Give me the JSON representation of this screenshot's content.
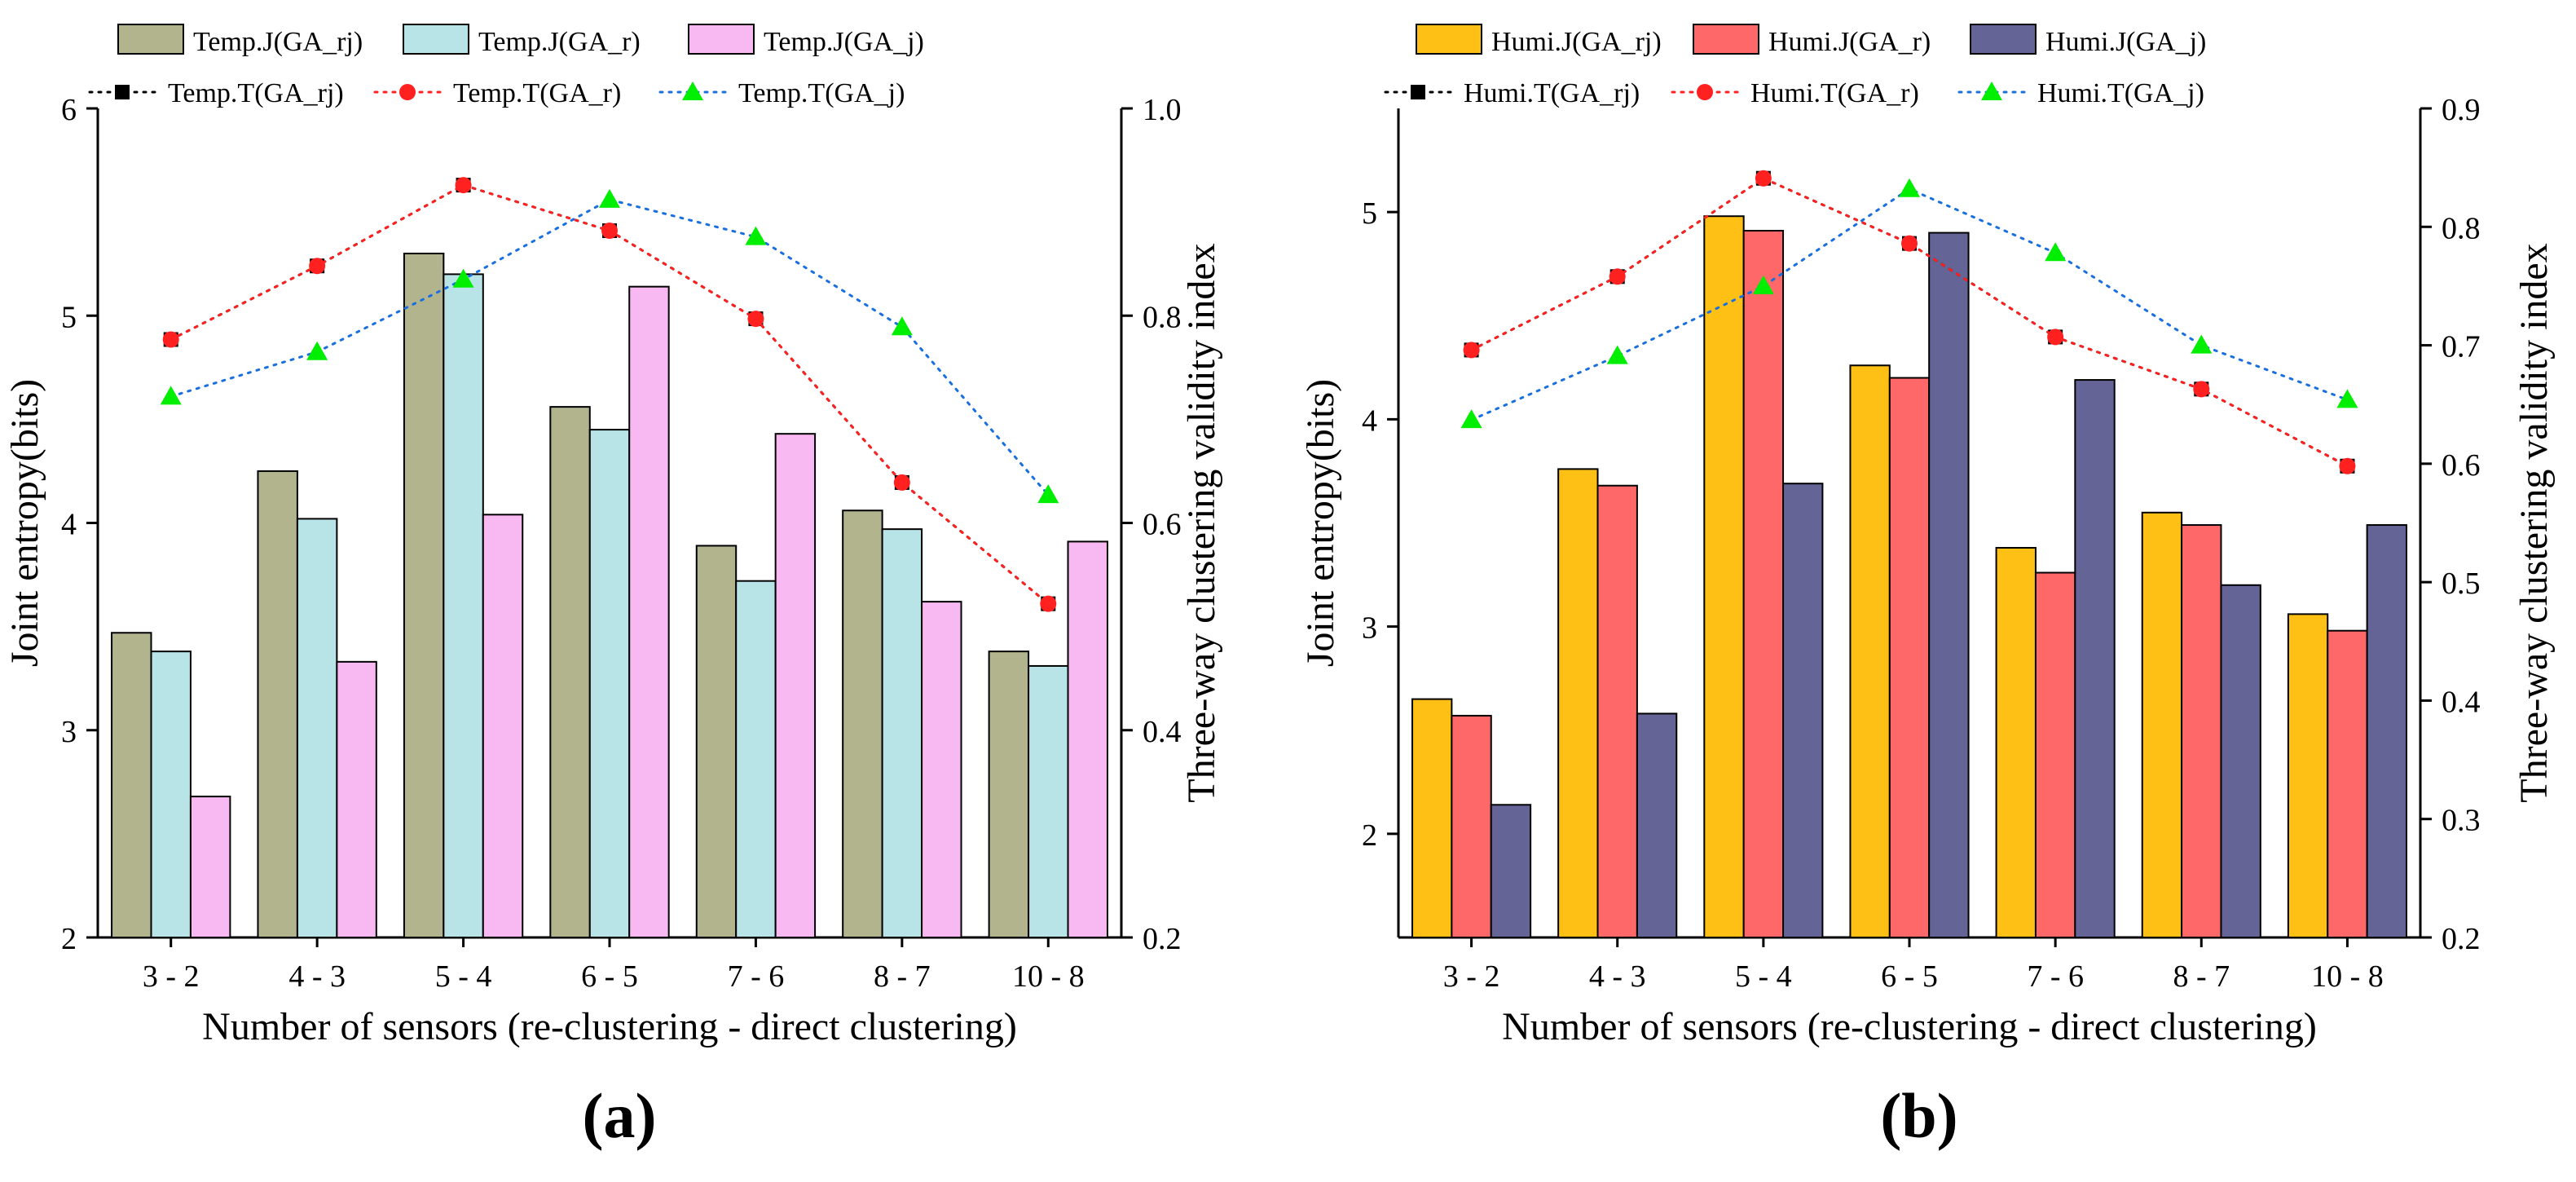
{
  "chart_data": [
    {
      "type": "bar",
      "panel_label": "(a)",
      "categories": [
        "3 - 2",
        "4 - 3",
        "5 - 4",
        "6 - 5",
        "7 - 6",
        "8 - 7",
        "10 - 8"
      ],
      "xlabel": "Number of sensors (re-clustering - direct clustering)",
      "ylabel": "Joint entropy(bits)",
      "y2label": "Three-way clustering validity index",
      "ylim": [
        2,
        6
      ],
      "yticks": [
        2,
        3,
        4,
        5,
        6
      ],
      "y2lim": [
        0.2,
        1.0
      ],
      "y2ticks": [
        "0.2",
        "0.4",
        "0.6",
        "0.8",
        "1.0"
      ],
      "bar_series": [
        {
          "name": "Temp.J(GA_rj)",
          "color": "#b2b48e",
          "values": [
            3.47,
            4.25,
            5.3,
            4.56,
            3.89,
            4.06,
            3.38
          ]
        },
        {
          "name": "Temp.J(GA_r)",
          "color": "#b8e4e8",
          "values": [
            3.38,
            4.02,
            5.2,
            4.45,
            3.72,
            3.97,
            3.31
          ]
        },
        {
          "name": "Temp.J(GA_j)",
          "color": "#f8b8f2",
          "values": [
            2.68,
            3.33,
            4.04,
            5.14,
            4.43,
            3.62,
            3.91
          ]
        }
      ],
      "line_series": [
        {
          "name": "Temp.T(GA_rj)",
          "color": "#000000",
          "marker": "square",
          "values": [
            0.777,
            0.848,
            0.926,
            0.882,
            0.797,
            0.639,
            0.522
          ]
        },
        {
          "name": "Temp.T(GA_r)",
          "color": "#ff2020",
          "marker": "circle",
          "values": [
            0.777,
            0.848,
            0.926,
            0.882,
            0.797,
            0.639,
            0.522
          ]
        },
        {
          "name": "Temp.T(GA_j)",
          "color": "#00ee00",
          "line_color": "#1a6fdf",
          "marker": "triangle",
          "values": [
            0.722,
            0.765,
            0.835,
            0.912,
            0.876,
            0.789,
            0.627
          ]
        }
      ]
    },
    {
      "type": "bar",
      "panel_label": "(b)",
      "categories": [
        "3 - 2",
        "4 - 3",
        "5 - 4",
        "6 - 5",
        "7 - 6",
        "8 - 7",
        "10 - 8"
      ],
      "xlabel": "Number of sensors (re-clustering - direct clustering)",
      "ylabel": "Joint entropy(bits)",
      "y2label": "Three-way clustering validity index",
      "ylim": [
        1.5,
        5.5
      ],
      "yticks": [
        2,
        3,
        4,
        5
      ],
      "y2lim": [
        0.2,
        0.9
      ],
      "y2ticks": [
        "0.2",
        "0.3",
        "0.4",
        "0.5",
        "0.6",
        "0.7",
        "0.8",
        "0.9"
      ],
      "bar_series": [
        {
          "name": "Humi.J(GA_rj)",
          "color": "#ffc015",
          "values": [
            2.65,
            3.76,
            4.98,
            4.26,
            3.38,
            3.55,
            3.06
          ]
        },
        {
          "name": "Humi.J(GA_r)",
          "color": "#ff6868",
          "values": [
            2.57,
            3.68,
            4.91,
            4.2,
            3.26,
            3.49,
            2.98
          ]
        },
        {
          "name": "Humi.J(GA_j)",
          "color": "#646496",
          "values": [
            2.14,
            2.58,
            3.69,
            4.9,
            4.19,
            3.2,
            3.49
          ]
        }
      ],
      "line_series": [
        {
          "name": "Humi.T(GA_rj)",
          "color": "#000000",
          "marker": "square",
          "values": [
            0.696,
            0.758,
            0.841,
            0.786,
            0.707,
            0.663,
            0.598
          ]
        },
        {
          "name": "Humi.T(GA_r)",
          "color": "#ff2020",
          "marker": "circle",
          "values": [
            0.696,
            0.758,
            0.841,
            0.786,
            0.707,
            0.663,
            0.598
          ]
        },
        {
          "name": "Humi.T(GA_j)",
          "color": "#00ee00",
          "line_color": "#1a6fdf",
          "marker": "triangle",
          "values": [
            0.637,
            0.691,
            0.75,
            0.832,
            0.778,
            0.7,
            0.654
          ]
        }
      ]
    }
  ]
}
